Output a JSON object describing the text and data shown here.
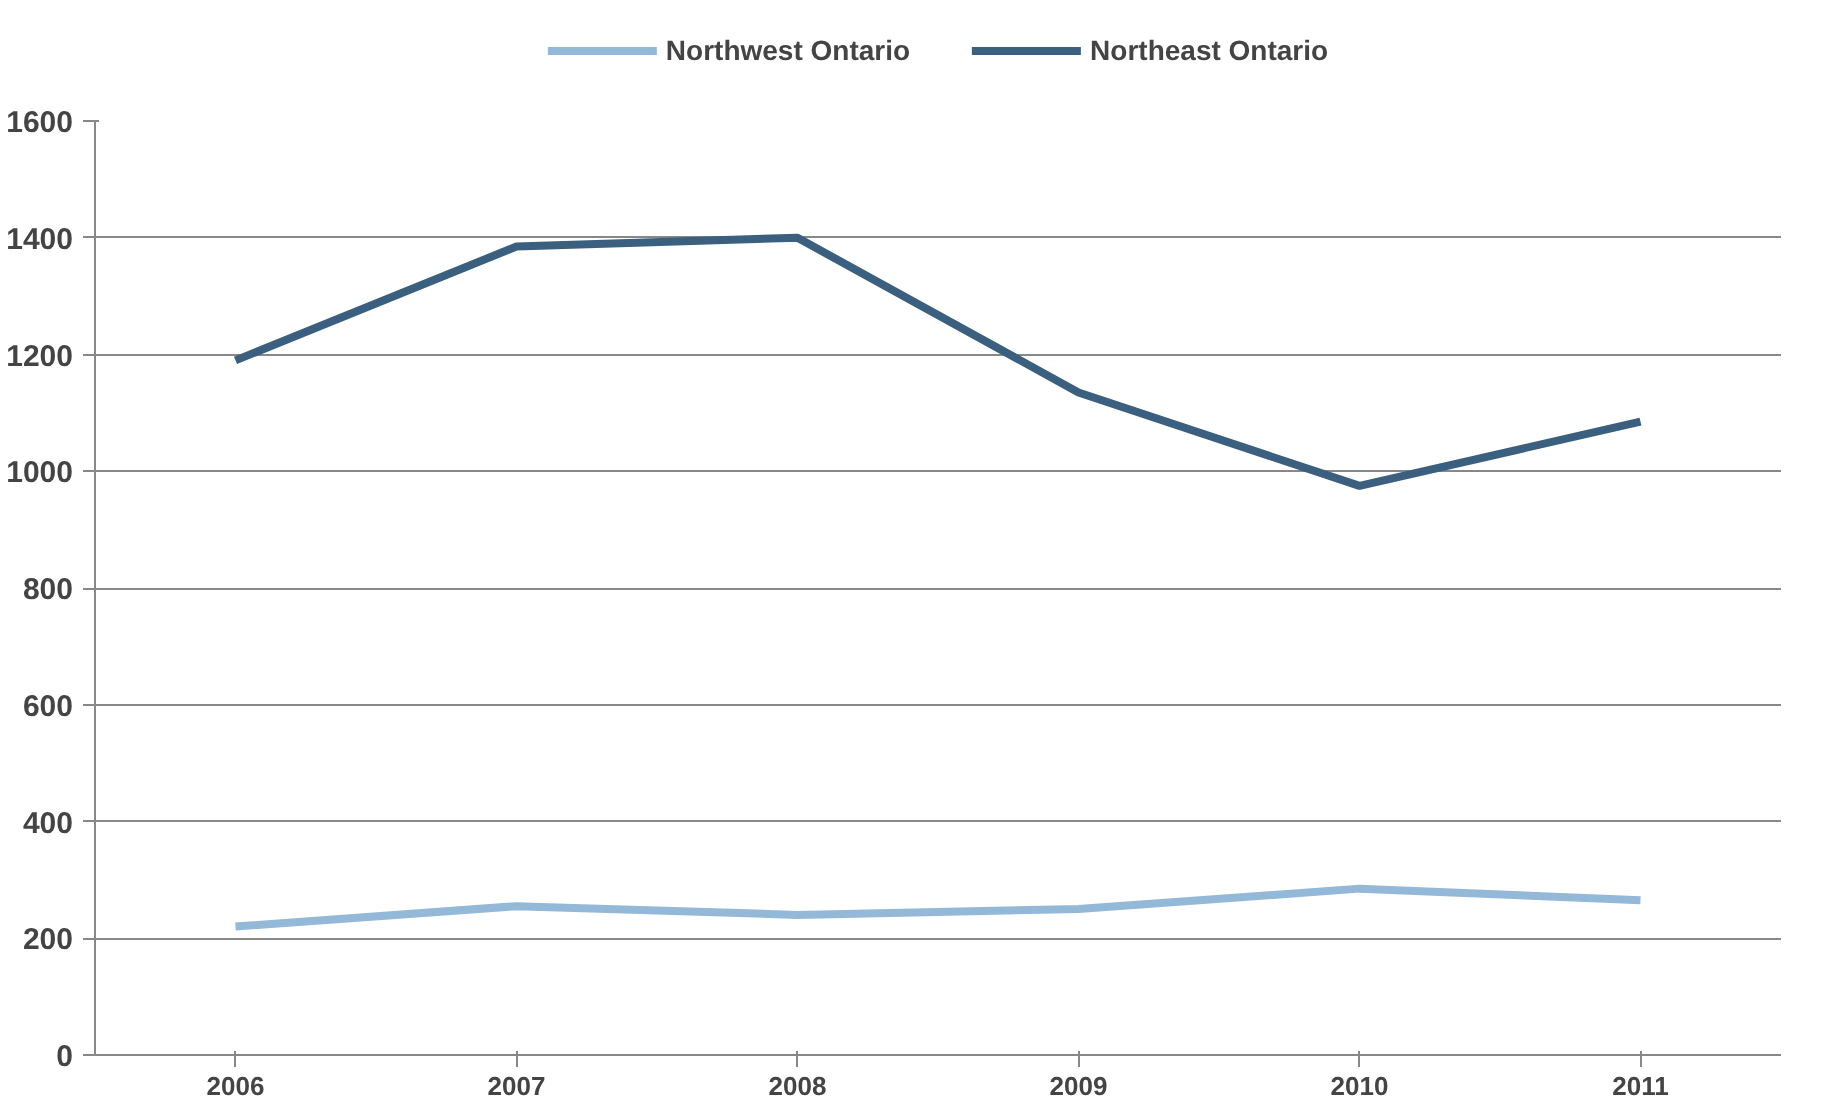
{
  "chart_data": {
    "type": "line",
    "categories": [
      "2006",
      "2007",
      "2008",
      "2009",
      "2010",
      "2011"
    ],
    "series": [
      {
        "name": "Northwest Ontario",
        "color": "#94b8d8",
        "values": [
          220,
          255,
          240,
          250,
          285,
          265
        ]
      },
      {
        "name": "Northeast Ontario",
        "color": "#3a5f7f",
        "values": [
          1190,
          1385,
          1400,
          1135,
          975,
          1085
        ]
      }
    ],
    "ylim": [
      0,
      1600
    ],
    "yticks": [
      0,
      200,
      400,
      600,
      800,
      1000,
      1200,
      1400,
      1600
    ],
    "grid": "y",
    "legend": "top",
    "line_style": "solid",
    "marker": "none"
  }
}
